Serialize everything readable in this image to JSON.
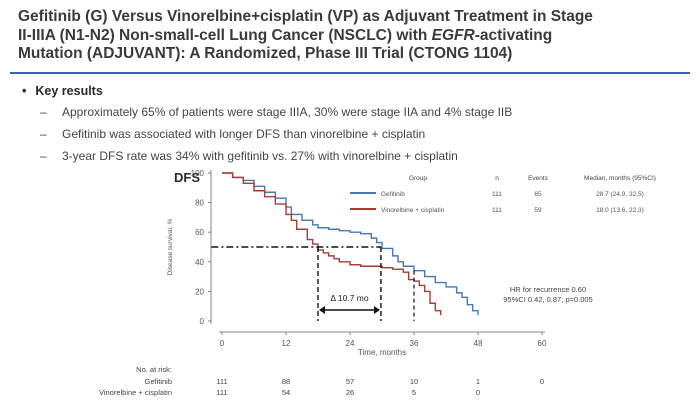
{
  "slide": {
    "title_line1": "Gefitinib (G) Versus Vinorelbine+cisplatin (VP) as Adjuvant Treatment in Stage",
    "title_line2_pre": "II-IIIA (N1-N2) Non-small-cell Lung Cancer (NSCLC) with ",
    "title_line2_em": "EGFR",
    "title_line2_post": "-activating",
    "title_line3": "Mutation (ADJUVANT): A Randomized, Phase III Trial (CTONG 1104)",
    "key_results_heading": "Key results",
    "bullets": [
      "Approximately 65% of patients were stage IIIA, 30% were stage IIA and 4% stage IIB",
      "Gefitinib was associated with longer DFS than vinorelbine + cisplatin",
      "3-year DFS rate was 34% with gefitinib vs. 27% with vinorelbine + cisplatin"
    ]
  },
  "chart_data": {
    "type": "line",
    "chart_label": "DFS",
    "xlabel": "Time, months",
    "ylabel": "Disease survival, %",
    "xlim": [
      0,
      60
    ],
    "ylim": [
      0,
      100
    ],
    "xticks": [
      0,
      12,
      24,
      36,
      48,
      60
    ],
    "yticks": [
      0,
      20,
      40,
      60,
      80,
      100
    ],
    "legend_headers": {
      "group": "Group",
      "n": "n",
      "events": "Events",
      "median": "Median, months (95%CI)"
    },
    "series": [
      {
        "name": "Gefitinib",
        "color": "#4a77b4",
        "n": "111",
        "events": "65",
        "median": "28.7 (24.9, 32.5)",
        "x": [
          0,
          2,
          4,
          6,
          8,
          10,
          12,
          13,
          15,
          17,
          18,
          20,
          22,
          24,
          26,
          28,
          29,
          30,
          32,
          33,
          34,
          36,
          38,
          40,
          42,
          44,
          45,
          46,
          47,
          48
        ],
        "y": [
          100,
          97,
          95,
          91,
          87,
          83,
          77,
          72,
          68,
          65,
          63,
          62,
          61,
          60,
          59,
          56,
          53,
          49,
          44,
          40,
          37,
          34,
          30,
          26,
          23,
          19,
          16,
          11,
          7,
          4
        ]
      },
      {
        "name": "Vinorelbine + cisplatin",
        "color": "#a83c34",
        "n": "111",
        "events": "59",
        "median": "18.0 (13.6, 22.3)",
        "x": [
          0,
          2,
          4,
          6,
          8,
          10,
          12,
          13,
          14,
          16,
          17,
          18,
          19,
          20,
          21,
          22,
          24,
          26,
          28,
          30,
          32,
          34,
          35,
          36,
          37,
          38,
          39,
          40,
          41
        ],
        "y": [
          100,
          97,
          93,
          88,
          84,
          79,
          72,
          68,
          62,
          55,
          52,
          48,
          46,
          44,
          42,
          40,
          38,
          37,
          37,
          36,
          35,
          33,
          28,
          27,
          24,
          20,
          12,
          7,
          4
        ]
      }
    ],
    "annotations": {
      "delta_label": "Δ 10.7 mo",
      "hr_line1": "HR for recurrence 0.60",
      "hr_line2": "95%CI 0.42, 0.87; p=0.005"
    },
    "risk_table": {
      "heading": "No. at risk:",
      "rows": [
        {
          "label": "Gefitinib",
          "counts": [
            "111",
            "88",
            "57",
            "10",
            "1",
            "0"
          ]
        },
        {
          "label": "Vinorelbine + cisplatin",
          "counts": [
            "111",
            "54",
            "26",
            "5",
            "0",
            ""
          ]
        }
      ]
    }
  }
}
